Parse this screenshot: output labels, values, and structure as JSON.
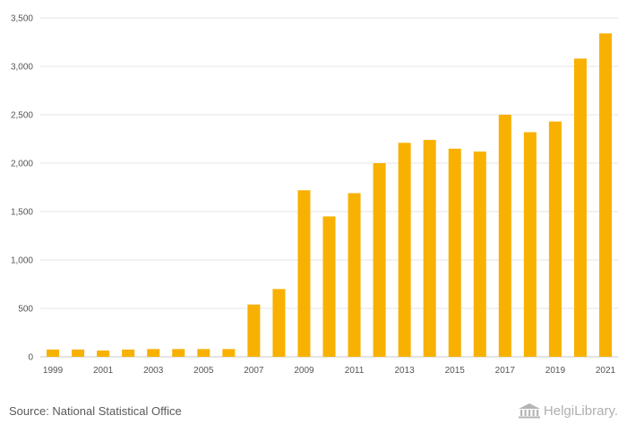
{
  "chart_data": {
    "type": "bar",
    "title": "",
    "xlabel": "",
    "ylabel": "",
    "categories": [
      "1999",
      "2000",
      "2001",
      "2002",
      "2003",
      "2004",
      "2005",
      "2006",
      "2007",
      "2008",
      "2009",
      "2010",
      "2011",
      "2012",
      "2013",
      "2014",
      "2015",
      "2016",
      "2017",
      "2018",
      "2019",
      "2020",
      "2021"
    ],
    "values": [
      75,
      75,
      65,
      75,
      80,
      80,
      80,
      80,
      540,
      700,
      1720,
      1450,
      1690,
      2000,
      2210,
      2240,
      2150,
      2120,
      2500,
      2320,
      2430,
      3080,
      3340
    ],
    "x_tick_labels": [
      "1999",
      "2001",
      "2003",
      "2005",
      "2007",
      "2009",
      "2011",
      "2013",
      "2015",
      "2017",
      "2019",
      "2021"
    ],
    "y_tick_labels": [
      "0",
      "500",
      "1,000",
      "1,500",
      "2,000",
      "2,500",
      "3,000",
      "3,500"
    ],
    "ylim": [
      0,
      3500
    ],
    "grid": true,
    "bar_color": "#f8b100",
    "grid_color": "#e6e6e6"
  },
  "footer": {
    "source": "Source: National Statistical Office",
    "brand_name": "HelgiLibrary.",
    "brand_icon": "library-building-icon"
  }
}
